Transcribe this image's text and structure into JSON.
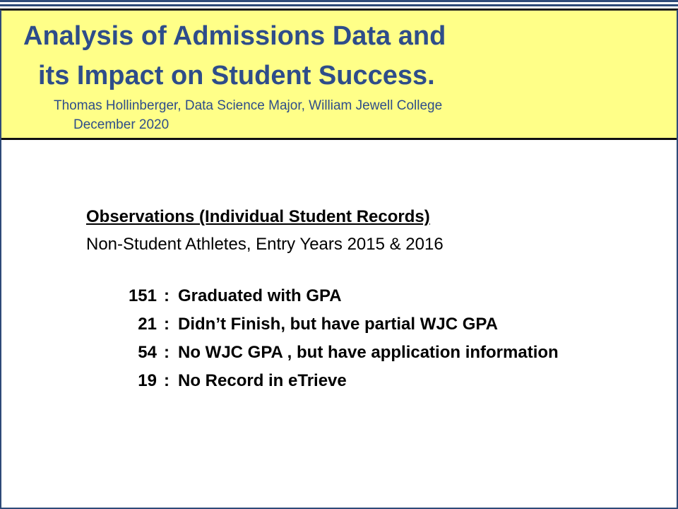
{
  "slide": {
    "title_line1": "Analysis of Admissions Data and",
    "title_line2": "its Impact on Student Success.",
    "author_line": "Thomas Hollinberger, Data Science Major, William Jewell College",
    "date_line": "December 2020",
    "colors": {
      "title_band": "#ffff88",
      "title_text": "#2e4d8a",
      "border": "#2e4a78",
      "body_text": "#000000"
    }
  },
  "observations": {
    "heading": "Observations (Individual Student Records)",
    "subheading": "Non-Student Athletes, Entry Years 2015 & 2016",
    "separator": ":",
    "records": [
      {
        "count": "151",
        "description": "Graduated with GPA"
      },
      {
        "count": "21",
        "description": "Didn’t Finish, but have partial WJC GPA"
      },
      {
        "count": "54",
        "description": "No WJC GPA , but have application information"
      },
      {
        "count": "19",
        "description": "No Record in eTrieve"
      }
    ]
  }
}
